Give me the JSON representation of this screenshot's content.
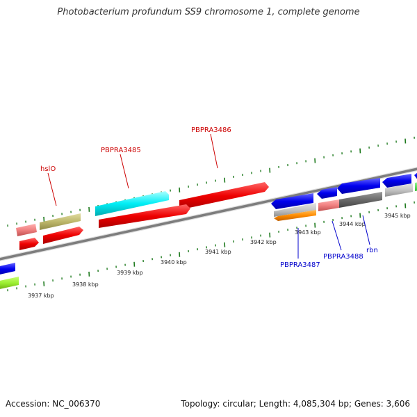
{
  "title": "Photobacterium profundum SS9 chromosome 1, complete genome",
  "footer": {
    "accession": "Accession: NC_006370",
    "summary": "Topology: circular; Length: 4,085,304 bp; Genes: 3,606"
  },
  "colors": {
    "backbone": "#8a8a8a",
    "tick": "#1e7a1e",
    "label_red": "#cc0000",
    "label_blue": "#0000cc"
  },
  "scale": {
    "kbp_labels": [
      "3937 kbp",
      "3938 kbp",
      "3939 kbp",
      "3940 kbp",
      "3941 kbp",
      "3942 kbp",
      "3943 kbp",
      "3944 kbp",
      "3945 kbp"
    ]
  },
  "genes": [
    {
      "name": "hslO",
      "color": "#c9c47c",
      "strand": "+",
      "label": "hslO",
      "label_color": "#cc0000"
    },
    {
      "name": "PBPRA3485",
      "color": "#00e8f0",
      "strand": "+",
      "label": "PBPRA3485",
      "label_color": "#cc0000"
    },
    {
      "name": "PBPRA3486",
      "color": "#ff0000",
      "strand": "+",
      "label": "PBPRA3486",
      "label_color": "#cc0000"
    },
    {
      "name": "PBPRA3487",
      "color": "#ff8c00",
      "strand": "-",
      "label": "PBPRA3487",
      "label_color": "#0000cc"
    },
    {
      "name": "PBPRA3488",
      "color": "#f08080",
      "strand": "-",
      "label": "PBPRA3488",
      "label_color": "#0000cc"
    },
    {
      "name": "rbn",
      "color": "#6e6e6e",
      "strand": "-",
      "label": "rbn",
      "label_color": "#0000cc"
    }
  ]
}
